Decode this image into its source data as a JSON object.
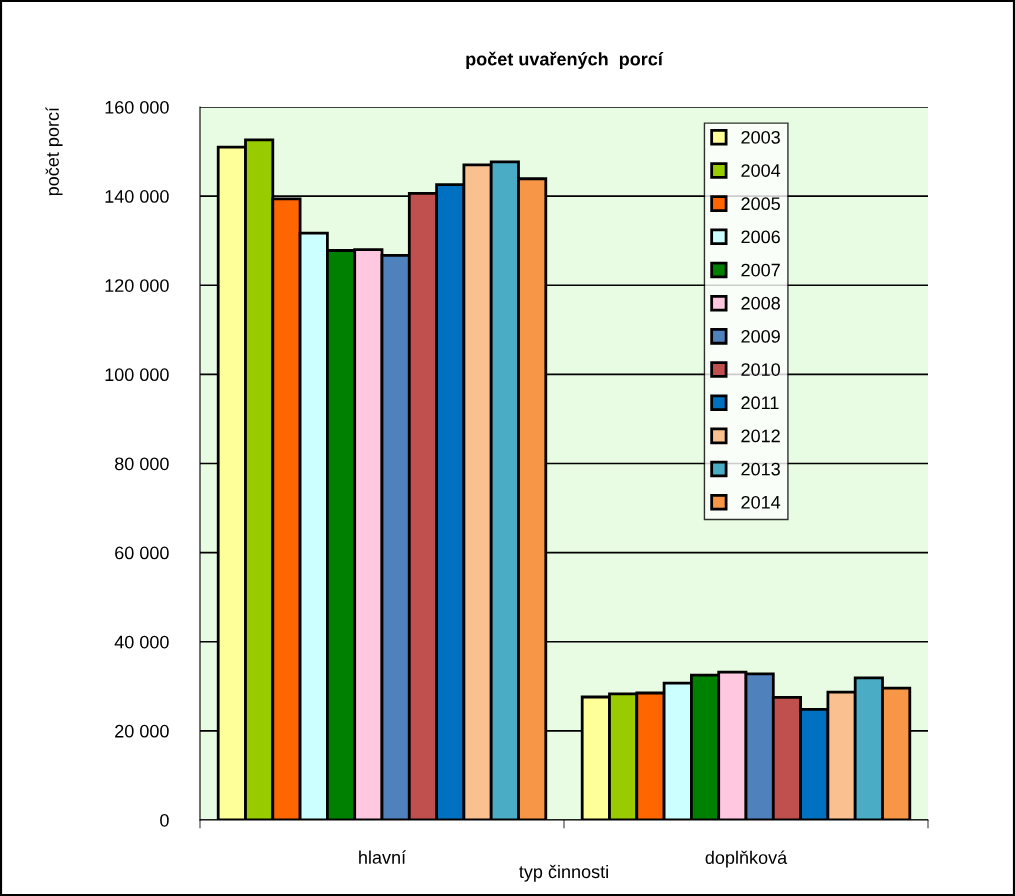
{
  "chart_data": {
    "type": "bar",
    "title": "počet uvařených  porcí",
    "xlabel": "typ činnosti",
    "ylabel": "počet porcí",
    "categories": [
      "hlavní",
      "doplňková"
    ],
    "series": [
      {
        "name": "2003",
        "color": "#ffff99",
        "values": [
          151000,
          27600
        ]
      },
      {
        "name": "2004",
        "color": "#99cc00",
        "values": [
          152600,
          28300
        ]
      },
      {
        "name": "2005",
        "color": "#ff6600",
        "values": [
          139400,
          28500
        ]
      },
      {
        "name": "2006",
        "color": "#ccffff",
        "values": [
          131700,
          30700
        ]
      },
      {
        "name": "2007",
        "color": "#008000",
        "values": [
          127800,
          32500
        ]
      },
      {
        "name": "2008",
        "color": "#ffc7e0",
        "values": [
          128000,
          33200
        ]
      },
      {
        "name": "2009",
        "color": "#4f81bd",
        "values": [
          126700,
          32800
        ]
      },
      {
        "name": "2010",
        "color": "#c0504d",
        "values": [
          140600,
          27500
        ]
      },
      {
        "name": "2011",
        "color": "#0070c0",
        "values": [
          142600,
          24800
        ]
      },
      {
        "name": "2012",
        "color": "#fac090",
        "values": [
          147000,
          28700
        ]
      },
      {
        "name": "2013",
        "color": "#4bacc6",
        "values": [
          147700,
          31900
        ]
      },
      {
        "name": "2014",
        "color": "#f79646",
        "values": [
          143900,
          29600
        ]
      }
    ],
    "ylim": [
      0,
      160000
    ],
    "yticks": [
      {
        "value": 0,
        "label": "0"
      },
      {
        "value": 20000,
        "label": "20 000"
      },
      {
        "value": 40000,
        "label": "40 000"
      },
      {
        "value": 60000,
        "label": "60 000"
      },
      {
        "value": 80000,
        "label": "80 000"
      },
      {
        "value": 100000,
        "label": "100 000"
      },
      {
        "value": 120000,
        "label": "120 000"
      },
      {
        "value": 140000,
        "label": "140 000"
      },
      {
        "value": 160000,
        "label": "160 000"
      }
    ],
    "grid": "y",
    "legend": "top right"
  }
}
